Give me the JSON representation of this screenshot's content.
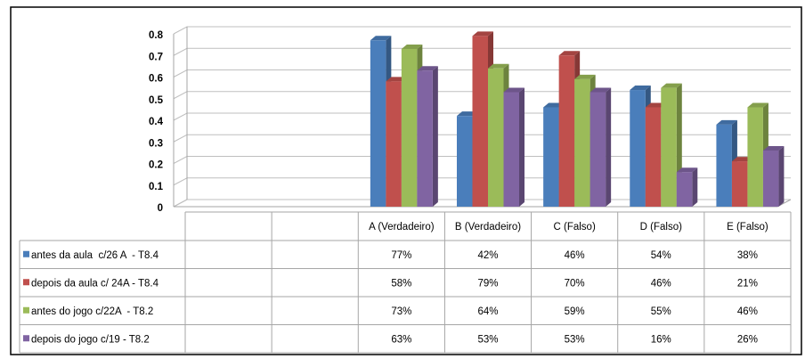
{
  "chart_data": {
    "type": "bar",
    "categories": [
      null,
      null,
      "A (Verdadeiro)",
      "B (Verdadeiro)",
      "C (Falso)",
      "D (Falso)",
      "E (Falso)"
    ],
    "series": [
      {
        "name": "antes da aula  c/26 A  - T8.4",
        "color": "#4a7ebb",
        "values": [
          null,
          null,
          0.77,
          0.42,
          0.46,
          0.54,
          0.38
        ],
        "value_labels": [
          null,
          null,
          "77%",
          "42%",
          "46%",
          "54%",
          "38%"
        ]
      },
      {
        "name": "depois da aula c/ 24A - T8.4",
        "color": "#c0504d",
        "values": [
          null,
          null,
          0.58,
          0.79,
          0.7,
          0.46,
          0.21
        ],
        "value_labels": [
          null,
          null,
          "58%",
          "79%",
          "70%",
          "46%",
          "21%"
        ]
      },
      {
        "name": "antes do jogo c/22A  - T8.2",
        "color": "#9bbb59",
        "values": [
          null,
          null,
          0.73,
          0.64,
          0.59,
          0.55,
          0.46
        ],
        "value_labels": [
          null,
          null,
          "73%",
          "64%",
          "59%",
          "55%",
          "46%"
        ]
      },
      {
        "name": "depois do jogo c/19 - T8.2",
        "color": "#8064a2",
        "values": [
          null,
          null,
          0.63,
          0.53,
          0.53,
          0.16,
          0.26
        ],
        "value_labels": [
          null,
          null,
          "63%",
          "53%",
          "53%",
          "16%",
          "26%"
        ]
      }
    ],
    "ylim": [
      0,
      0.8
    ],
    "yticks": [
      0,
      0.1,
      0.2,
      0.3,
      0.4,
      0.5,
      0.6,
      0.7,
      0.8
    ],
    "grid": true,
    "data_table": true
  }
}
